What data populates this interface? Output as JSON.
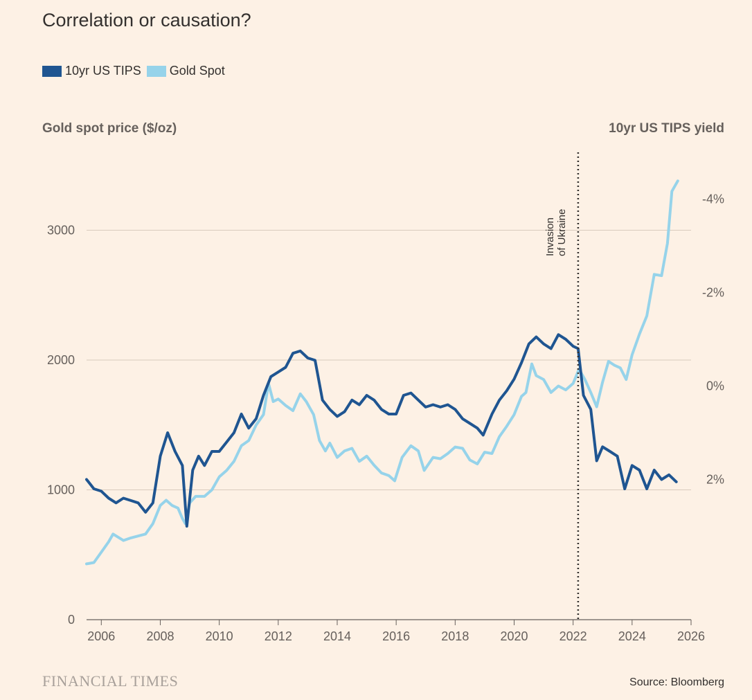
{
  "title": "Correlation or causation?",
  "legend": [
    {
      "label": "10yr US TIPS",
      "color": "#1f5591"
    },
    {
      "label": "Gold Spot",
      "color": "#96d3ea"
    }
  ],
  "left_axis_title": "Gold spot price ($/oz)",
  "right_axis_title": "10yr US TIPS yield",
  "source": "Source: Bloomberg",
  "footer_logo": "FINANCIAL TIMES",
  "annotation": {
    "line1": "Invasion",
    "line2": "of Ukraine",
    "x": 2022.17
  },
  "chart_data": {
    "type": "line",
    "title": "Correlation or causation?",
    "xlim": [
      2005.5,
      2026
    ],
    "ylim_left": [
      0,
      3600
    ],
    "ylim_right_inverted": [
      5,
      -5
    ],
    "x_ticks": [
      2006,
      2008,
      2010,
      2012,
      2014,
      2016,
      2018,
      2020,
      2022,
      2024,
      2026
    ],
    "y_ticks_left": [
      0,
      1000,
      2000,
      3000
    ],
    "y_ticks_right": [
      {
        "value": -4,
        "label": "-4%"
      },
      {
        "value": -2,
        "label": "-2%"
      },
      {
        "value": 0,
        "label": "0%"
      },
      {
        "value": 2,
        "label": "2%"
      }
    ],
    "gridlines": true,
    "legend_position": "top-left",
    "series": [
      {
        "name": "Gold Spot",
        "axis": "left",
        "color": "#96d3ea",
        "points": [
          [
            2005.5,
            430
          ],
          [
            2005.75,
            440
          ],
          [
            2006.0,
            520
          ],
          [
            2006.25,
            600
          ],
          [
            2006.4,
            660
          ],
          [
            2006.75,
            610
          ],
          [
            2007.0,
            630
          ],
          [
            2007.5,
            660
          ],
          [
            2007.75,
            740
          ],
          [
            2008.0,
            880
          ],
          [
            2008.2,
            920
          ],
          [
            2008.4,
            880
          ],
          [
            2008.6,
            860
          ],
          [
            2008.75,
            780
          ],
          [
            2008.85,
            740
          ],
          [
            2009.0,
            900
          ],
          [
            2009.2,
            950
          ],
          [
            2009.5,
            950
          ],
          [
            2009.75,
            1000
          ],
          [
            2010.0,
            1100
          ],
          [
            2010.25,
            1150
          ],
          [
            2010.5,
            1220
          ],
          [
            2010.75,
            1340
          ],
          [
            2011.0,
            1380
          ],
          [
            2011.25,
            1500
          ],
          [
            2011.5,
            1580
          ],
          [
            2011.67,
            1820
          ],
          [
            2011.83,
            1680
          ],
          [
            2012.0,
            1700
          ],
          [
            2012.25,
            1650
          ],
          [
            2012.5,
            1610
          ],
          [
            2012.75,
            1740
          ],
          [
            2012.95,
            1680
          ],
          [
            2013.2,
            1580
          ],
          [
            2013.4,
            1380
          ],
          [
            2013.6,
            1300
          ],
          [
            2013.75,
            1360
          ],
          [
            2014.0,
            1250
          ],
          [
            2014.25,
            1300
          ],
          [
            2014.5,
            1320
          ],
          [
            2014.75,
            1220
          ],
          [
            2015.0,
            1260
          ],
          [
            2015.25,
            1190
          ],
          [
            2015.5,
            1130
          ],
          [
            2015.75,
            1110
          ],
          [
            2015.95,
            1070
          ],
          [
            2016.2,
            1250
          ],
          [
            2016.5,
            1340
          ],
          [
            2016.75,
            1300
          ],
          [
            2016.95,
            1150
          ],
          [
            2017.25,
            1250
          ],
          [
            2017.5,
            1240
          ],
          [
            2017.75,
            1280
          ],
          [
            2018.0,
            1330
          ],
          [
            2018.25,
            1320
          ],
          [
            2018.5,
            1230
          ],
          [
            2018.75,
            1200
          ],
          [
            2019.0,
            1290
          ],
          [
            2019.25,
            1280
          ],
          [
            2019.5,
            1410
          ],
          [
            2019.75,
            1490
          ],
          [
            2020.0,
            1580
          ],
          [
            2020.25,
            1720
          ],
          [
            2020.4,
            1750
          ],
          [
            2020.6,
            1970
          ],
          [
            2020.75,
            1880
          ],
          [
            2021.0,
            1850
          ],
          [
            2021.25,
            1750
          ],
          [
            2021.5,
            1800
          ],
          [
            2021.75,
            1770
          ],
          [
            2022.0,
            1820
          ],
          [
            2022.2,
            1930
          ],
          [
            2022.4,
            1850
          ],
          [
            2022.6,
            1750
          ],
          [
            2022.8,
            1640
          ],
          [
            2023.0,
            1830
          ],
          [
            2023.2,
            1990
          ],
          [
            2023.4,
            1960
          ],
          [
            2023.6,
            1940
          ],
          [
            2023.8,
            1850
          ],
          [
            2024.0,
            2040
          ],
          [
            2024.25,
            2200
          ],
          [
            2024.5,
            2340
          ],
          [
            2024.75,
            2660
          ],
          [
            2025.0,
            2650
          ],
          [
            2025.2,
            2900
          ],
          [
            2025.35,
            3300
          ],
          [
            2025.55,
            3380
          ]
        ]
      },
      {
        "name": "10yr US TIPS",
        "axis": "right",
        "color": "#1f5591",
        "points": [
          [
            2005.5,
            2.0
          ],
          [
            2005.75,
            2.2
          ],
          [
            2006.0,
            2.25
          ],
          [
            2006.25,
            2.4
          ],
          [
            2006.5,
            2.5
          ],
          [
            2006.75,
            2.4
          ],
          [
            2007.0,
            2.45
          ],
          [
            2007.25,
            2.5
          ],
          [
            2007.5,
            2.7
          ],
          [
            2007.75,
            2.5
          ],
          [
            2008.0,
            1.5
          ],
          [
            2008.25,
            1.0
          ],
          [
            2008.5,
            1.4
          ],
          [
            2008.75,
            1.7
          ],
          [
            2008.9,
            3.0
          ],
          [
            2009.1,
            1.8
          ],
          [
            2009.3,
            1.5
          ],
          [
            2009.5,
            1.7
          ],
          [
            2009.75,
            1.4
          ],
          [
            2010.0,
            1.4
          ],
          [
            2010.25,
            1.2
          ],
          [
            2010.5,
            1.0
          ],
          [
            2010.75,
            0.6
          ],
          [
            2011.0,
            0.9
          ],
          [
            2011.25,
            0.7
          ],
          [
            2011.5,
            0.2
          ],
          [
            2011.75,
            -0.2
          ],
          [
            2012.0,
            -0.3
          ],
          [
            2012.25,
            -0.4
          ],
          [
            2012.5,
            -0.7
          ],
          [
            2012.75,
            -0.75
          ],
          [
            2013.0,
            -0.6
          ],
          [
            2013.25,
            -0.55
          ],
          [
            2013.5,
            0.3
          ],
          [
            2013.75,
            0.5
          ],
          [
            2014.0,
            0.65
          ],
          [
            2014.25,
            0.55
          ],
          [
            2014.5,
            0.3
          ],
          [
            2014.75,
            0.4
          ],
          [
            2015.0,
            0.2
          ],
          [
            2015.25,
            0.3
          ],
          [
            2015.5,
            0.5
          ],
          [
            2015.75,
            0.6
          ],
          [
            2016.0,
            0.6
          ],
          [
            2016.25,
            0.2
          ],
          [
            2016.5,
            0.15
          ],
          [
            2016.75,
            0.3
          ],
          [
            2017.0,
            0.45
          ],
          [
            2017.25,
            0.4
          ],
          [
            2017.5,
            0.45
          ],
          [
            2017.75,
            0.4
          ],
          [
            2018.0,
            0.5
          ],
          [
            2018.25,
            0.7
          ],
          [
            2018.5,
            0.8
          ],
          [
            2018.75,
            0.9
          ],
          [
            2018.95,
            1.05
          ],
          [
            2019.25,
            0.6
          ],
          [
            2019.5,
            0.3
          ],
          [
            2019.75,
            0.1
          ],
          [
            2020.0,
            -0.15
          ],
          [
            2020.25,
            -0.5
          ],
          [
            2020.5,
            -0.9
          ],
          [
            2020.75,
            -1.05
          ],
          [
            2021.0,
            -0.9
          ],
          [
            2021.25,
            -0.8
          ],
          [
            2021.5,
            -1.1
          ],
          [
            2021.75,
            -1.0
          ],
          [
            2022.0,
            -0.85
          ],
          [
            2022.17,
            -0.8
          ],
          [
            2022.35,
            0.2
          ],
          [
            2022.6,
            0.5
          ],
          [
            2022.8,
            1.6
          ],
          [
            2023.0,
            1.3
          ],
          [
            2023.25,
            1.4
          ],
          [
            2023.5,
            1.5
          ],
          [
            2023.75,
            2.2
          ],
          [
            2024.0,
            1.7
          ],
          [
            2024.25,
            1.8
          ],
          [
            2024.5,
            2.2
          ],
          [
            2024.75,
            1.8
          ],
          [
            2025.0,
            2.0
          ],
          [
            2025.25,
            1.9
          ],
          [
            2025.5,
            2.05
          ]
        ]
      }
    ]
  }
}
